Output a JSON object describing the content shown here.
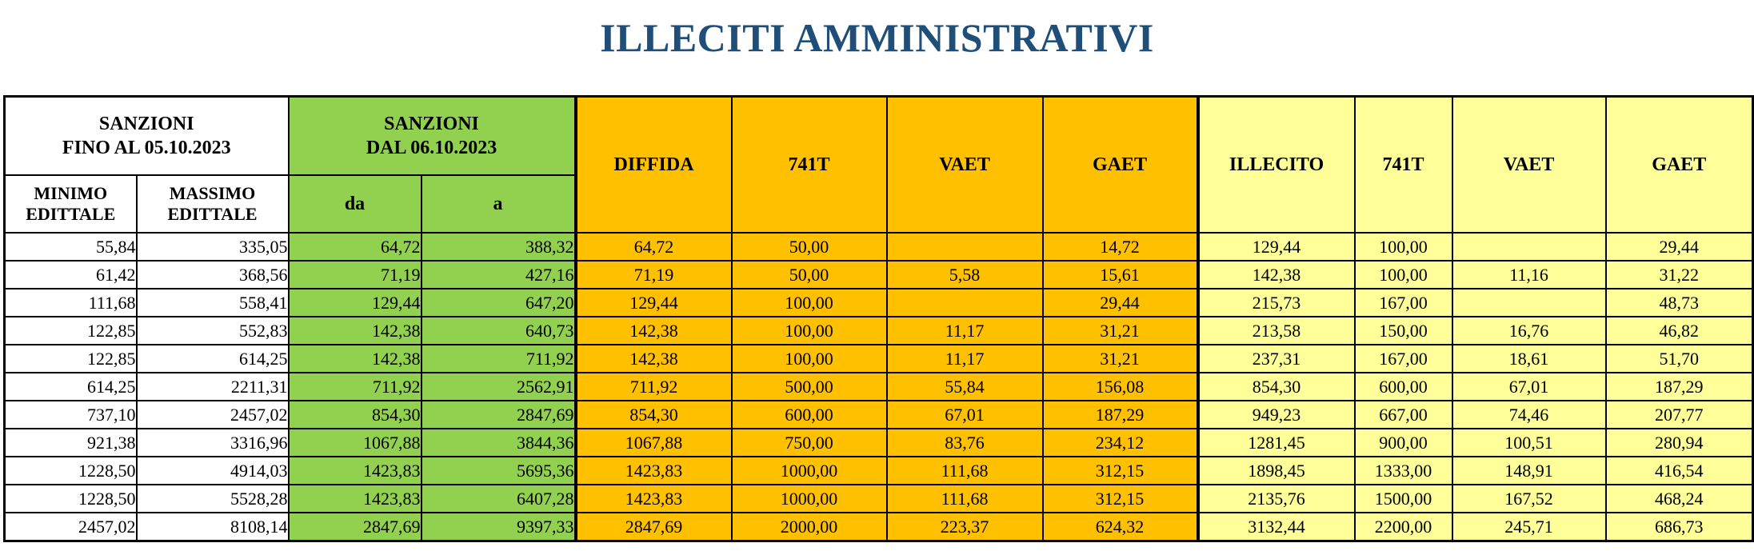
{
  "title": "ILLECITI AMMINISTRATIVI",
  "colors": {
    "title": "#1f4e79",
    "green": "#92d050",
    "orange": "#ffc000",
    "yellow": "#ffff99"
  },
  "headers": {
    "sanzioni_fino_line1": "SANZIONI",
    "sanzioni_fino_line2": "FINO AL 05.10.2023",
    "sanzioni_dal_line1": "SANZIONI",
    "sanzioni_dal_line2": "DAL 06.10.2023",
    "diffida": "DIFFIDA",
    "t741_a": "741T",
    "vaet_a": "VAET",
    "gaet_a": "GAET",
    "illecito": "ILLECITO",
    "t741_b": "741T",
    "vaet_b": "VAET",
    "gaet_b": "GAET",
    "minimo_line1": "MINIMO",
    "minimo_line2": "EDITTALE",
    "massimo_line1": "MASSIMO",
    "massimo_line2": "EDITTALE",
    "da": "da",
    "a": "a"
  },
  "rows": [
    [
      "55,84",
      "335,05",
      "64,72",
      "388,32",
      "64,72",
      "50,00",
      "",
      "14,72",
      "129,44",
      "100,00",
      "",
      "29,44"
    ],
    [
      "61,42",
      "368,56",
      "71,19",
      "427,16",
      "71,19",
      "50,00",
      "5,58",
      "15,61",
      "142,38",
      "100,00",
      "11,16",
      "31,22"
    ],
    [
      "111,68",
      "558,41",
      "129,44",
      "647,20",
      "129,44",
      "100,00",
      "",
      "29,44",
      "215,73",
      "167,00",
      "",
      "48,73"
    ],
    [
      "122,85",
      "552,83",
      "142,38",
      "640,73",
      "142,38",
      "100,00",
      "11,17",
      "31,21",
      "213,58",
      "150,00",
      "16,76",
      "46,82"
    ],
    [
      "122,85",
      "614,25",
      "142,38",
      "711,92",
      "142,38",
      "100,00",
      "11,17",
      "31,21",
      "237,31",
      "167,00",
      "18,61",
      "51,70"
    ],
    [
      "614,25",
      "2211,31",
      "711,92",
      "2562,91",
      "711,92",
      "500,00",
      "55,84",
      "156,08",
      "854,30",
      "600,00",
      "67,01",
      "187,29"
    ],
    [
      "737,10",
      "2457,02",
      "854,30",
      "2847,69",
      "854,30",
      "600,00",
      "67,01",
      "187,29",
      "949,23",
      "667,00",
      "74,46",
      "207,77"
    ],
    [
      "921,38",
      "3316,96",
      "1067,88",
      "3844,36",
      "1067,88",
      "750,00",
      "83,76",
      "234,12",
      "1281,45",
      "900,00",
      "100,51",
      "280,94"
    ],
    [
      "1228,50",
      "4914,03",
      "1423,83",
      "5695,36",
      "1423,83",
      "1000,00",
      "111,68",
      "312,15",
      "1898,45",
      "1333,00",
      "148,91",
      "416,54"
    ],
    [
      "1228,50",
      "5528,28",
      "1423,83",
      "6407,28",
      "1423,83",
      "1000,00",
      "111,68",
      "312,15",
      "2135,76",
      "1500,00",
      "167,52",
      "468,24"
    ],
    [
      "2457,02",
      "8108,14",
      "2847,69",
      "9397,33",
      "2847,69",
      "2000,00",
      "223,37",
      "624,32",
      "3132,44",
      "2200,00",
      "245,71",
      "686,73"
    ]
  ]
}
